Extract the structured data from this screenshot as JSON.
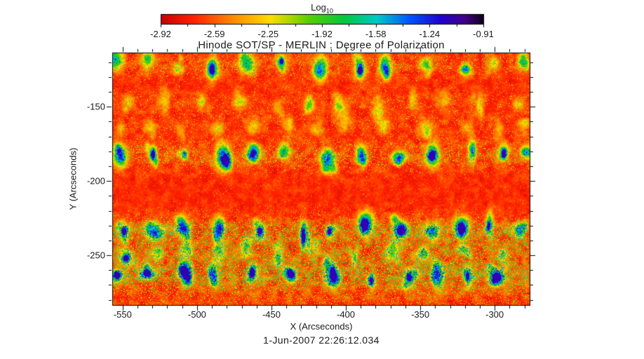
{
  "figure": {
    "title": "Hinode SOT/SP - MERLIN : Degree of Polarization",
    "xlabel": "X (Arcseconds)",
    "ylabel": "Y (Arcseconds)",
    "timestamp": "1-Jun-2007 22:26:12.034",
    "background_color": "#ffffff",
    "text_color": "#1a1a1a"
  },
  "colorbar": {
    "label": "Log",
    "label_sub": "10",
    "min": -2.92,
    "max": -0.91,
    "ticks": [
      "-2.92",
      "-2.59",
      "-2.25",
      "-1.92",
      "-1.58",
      "-1.24",
      "-0.91"
    ],
    "gradient_stops": [
      {
        "t": 0.0,
        "color": "#c80000"
      },
      {
        "t": 0.1,
        "color": "#ff2200"
      },
      {
        "t": 0.22,
        "color": "#ff8800"
      },
      {
        "t": 0.34,
        "color": "#ffdd00"
      },
      {
        "t": 0.46,
        "color": "#55d000"
      },
      {
        "t": 0.57,
        "color": "#00c840"
      },
      {
        "t": 0.67,
        "color": "#00c8c8"
      },
      {
        "t": 0.77,
        "color": "#0055ff"
      },
      {
        "t": 0.87,
        "color": "#2200cc"
      },
      {
        "t": 0.94,
        "color": "#440088"
      },
      {
        "t": 1.0,
        "color": "#100018"
      }
    ]
  },
  "chart_data": {
    "type": "heatmap",
    "title": "Hinode SOT/SP - MERLIN : Degree of Polarization",
    "xlabel": "X (Arcseconds)",
    "ylabel": "Y (Arcseconds)",
    "timestamp": "1-Jun-2007 22:26:12.034",
    "xlim": [
      -557,
      -276.5
    ],
    "ylim": [
      -283.5,
      -113.5
    ],
    "x_ticks": [
      -550,
      -500,
      -450,
      -400,
      -350,
      -300
    ],
    "y_ticks": [
      -150,
      -200,
      -250
    ],
    "x_minor_tick_step": 10,
    "y_minor_tick_step": 10,
    "value_scale": "log10 degree of polarization",
    "value_range": [
      -2.92,
      -0.91
    ],
    "background_value_log10": -2.8,
    "description": "Noisy red/orange background (log10 DoP about -2.9 to -2.5) covered with fine yellow speckle; horizontal rows of regularly spaced green speckled magnetic patches repeat across the field, the strongest rows containing deep blue cores (log10 DoP about -1.3 to -1.0); the bottom third is densely speckled green with many blue cores.",
    "features": {
      "column_spacing_arcsec": 23,
      "rows": [
        {
          "y_arcsec": -121,
          "amplitude": 0.4,
          "blue_core_fraction": 0.12
        },
        {
          "y_arcsec": -147,
          "amplitude": 0.22,
          "blue_core_fraction": 0.04
        },
        {
          "y_arcsec": -163,
          "amplitude": 0.18,
          "blue_core_fraction": 0.04
        },
        {
          "y_arcsec": -183,
          "amplitude": 0.55,
          "blue_core_fraction": 0.55
        },
        {
          "y_arcsec": -232,
          "amplitude": 0.55,
          "blue_core_fraction": 0.5
        },
        {
          "y_arcsec": -248,
          "amplitude": 0.3,
          "blue_core_fraction": 0.25
        },
        {
          "y_arcsec": -263,
          "amplitude": 0.6,
          "blue_core_fraction": 0.65
        }
      ]
    }
  }
}
